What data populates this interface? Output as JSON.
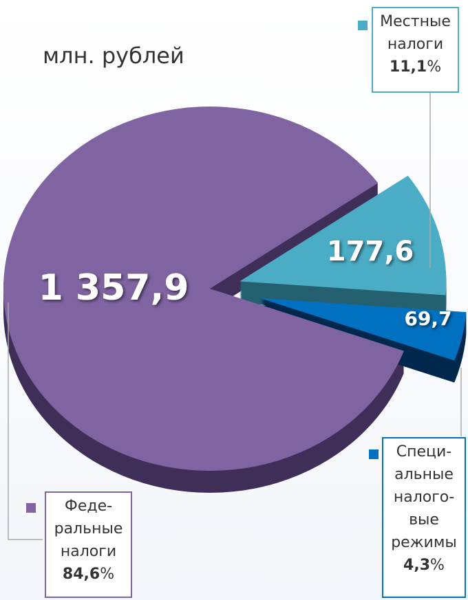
{
  "chart_data": {
    "type": "pie",
    "title": "млн. рублей",
    "series": [
      {
        "name": "Феде-\nральные\nналоги",
        "color": "#8064a2",
        "values": [
          1357.9
        ],
        "value_labels": [
          "1 357,9"
        ],
        "percent": 84.6,
        "percent_label": "84,6"
      },
      {
        "name": "Местные\nналоги",
        "color": "#4bacc6",
        "values": [
          177.6
        ],
        "value_labels": [
          "177,6"
        ],
        "percent": 11.1,
        "percent_label": "11,1"
      },
      {
        "name": "Специ-\nальные\nналого-\nвые\nрежимы",
        "color": "#0070c0",
        "values": [
          69.7
        ],
        "value_labels": [
          "69,7"
        ],
        "percent": 4.3,
        "percent_label": "4,3"
      }
    ],
    "percent_unit": "%"
  }
}
